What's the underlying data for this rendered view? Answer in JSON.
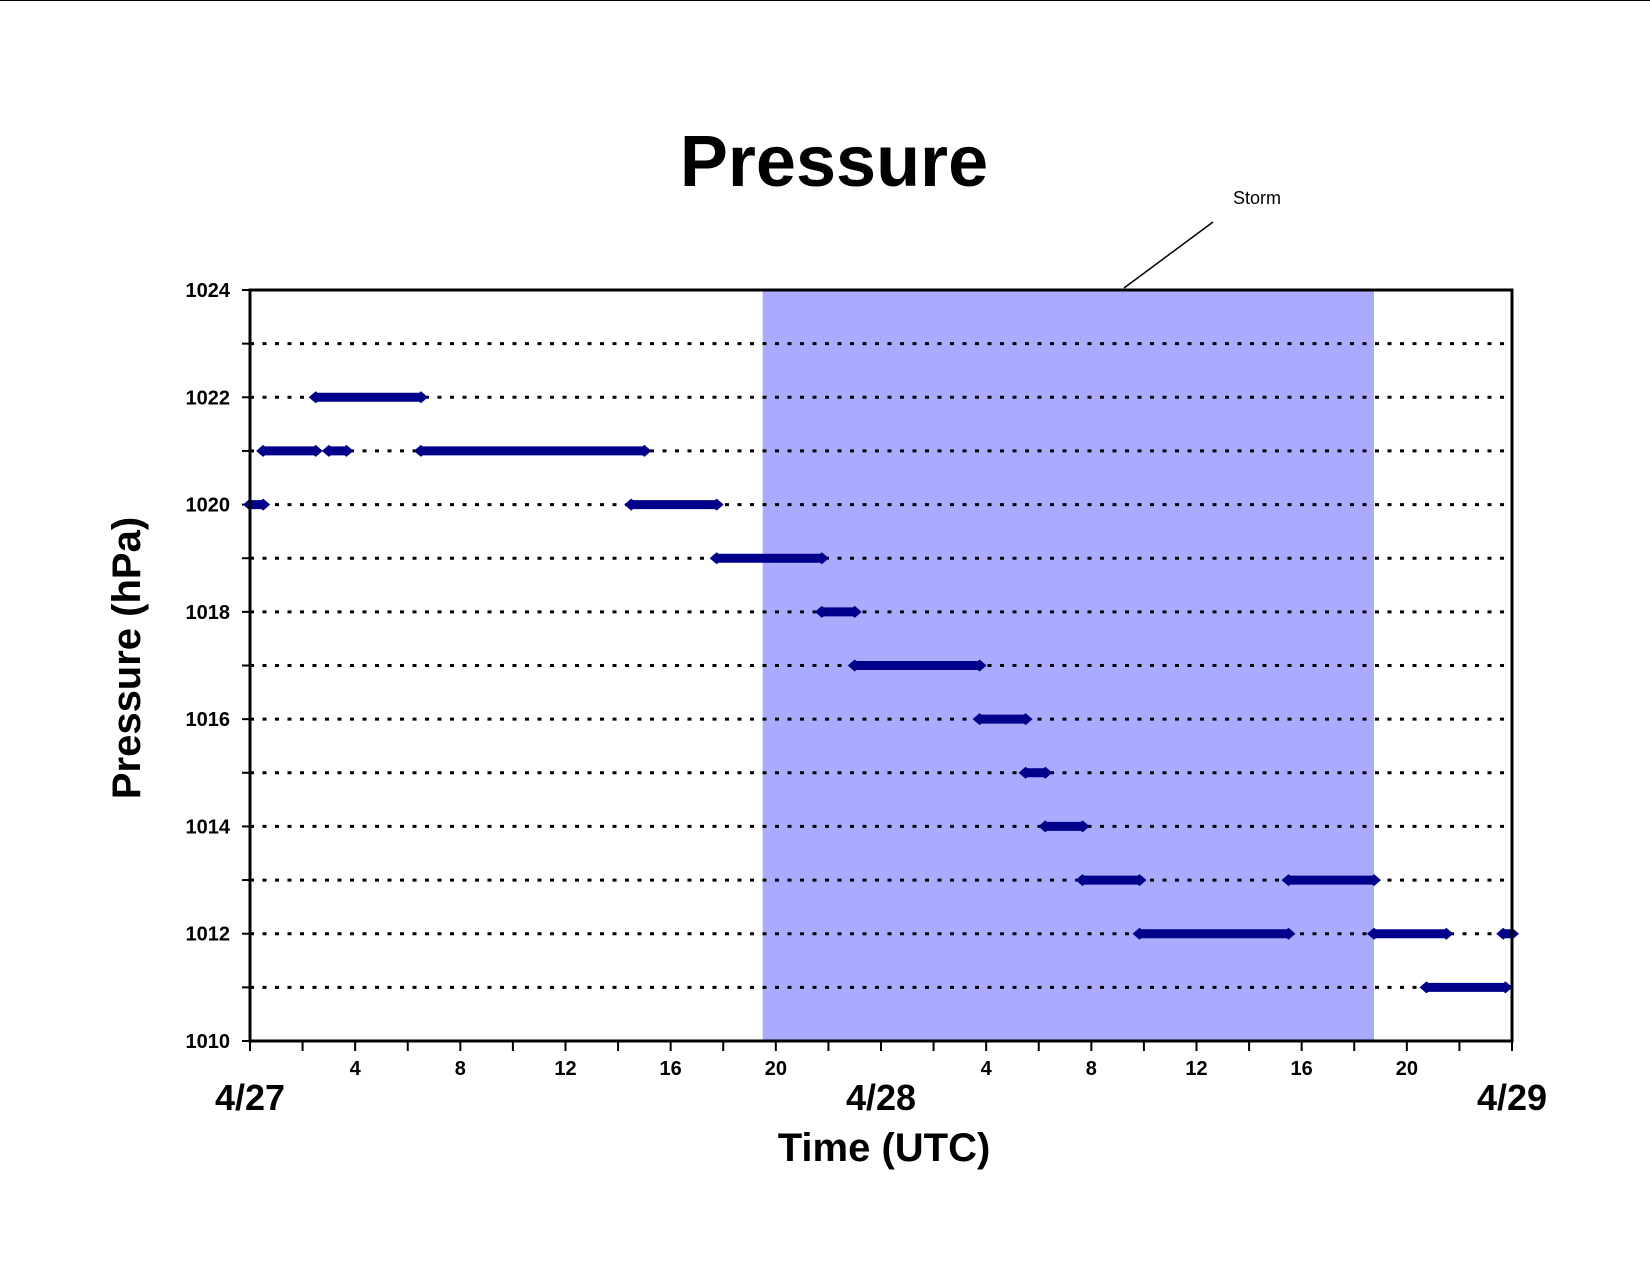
{
  "chart_data": {
    "type": "scatter",
    "title": "Pressure",
    "xlabel": "Time (UTC)",
    "ylabel": "Pressure (hPa)",
    "xlim": [
      "4/27 00:00",
      "4/29 00:00"
    ],
    "ylim": [
      1010,
      1024
    ],
    "y_ticks": [
      "1010",
      "1012",
      "1014",
      "1016",
      "1018",
      "1020",
      "1022",
      "1024"
    ],
    "x_hour_ticks": [
      "4",
      "8",
      "12",
      "16",
      "20",
      "4",
      "8",
      "12",
      "16",
      "20"
    ],
    "x_date_labels": [
      "4/27",
      "4/28",
      "4/29"
    ],
    "grid": "dotted horizontal lines at every 1 hPa",
    "marker_color": "#00008B",
    "annotation": {
      "text": "Storm",
      "shaded_region": {
        "start": "4/27 19:30",
        "end": "4/28 18:45",
        "color": "#AAAAFF"
      }
    },
    "series": [
      {
        "points": [
          {
            "x_start": "4/27 00:00",
            "x_end": "4/27 00:30",
            "y": 1020
          },
          {
            "x_start": "4/27 00:30",
            "x_end": "4/27 02:30",
            "y": 1021
          },
          {
            "x_start": "4/27 02:30",
            "x_end": "4/27 06:30",
            "y": 1022
          },
          {
            "x_start": "4/27 03:00",
            "x_end": "4/27 03:40",
            "y": 1021
          },
          {
            "x_start": "4/27 06:30",
            "x_end": "4/27 15:00",
            "y": 1021
          },
          {
            "x_start": "4/27 14:30",
            "x_end": "4/27 17:45",
            "y": 1020
          },
          {
            "x_start": "4/27 17:45",
            "x_end": "4/27 21:45",
            "y": 1019
          },
          {
            "x_start": "4/27 21:45",
            "x_end": "4/27 23:00",
            "y": 1018
          },
          {
            "x_start": "4/27 23:00",
            "x_end": "4/28 03:45",
            "y": 1017
          },
          {
            "x_start": "4/28 03:45",
            "x_end": "4/28 05:30",
            "y": 1016
          },
          {
            "x_start": "4/28 05:30",
            "x_end": "4/28 06:15",
            "y": 1015
          },
          {
            "x_start": "4/28 06:15",
            "x_end": "4/28 07:40",
            "y": 1014
          },
          {
            "x_start": "4/28 07:40",
            "x_end": "4/28 09:50",
            "y": 1013
          },
          {
            "x_start": "4/28 09:50",
            "x_end": "4/28 15:30",
            "y": 1012
          },
          {
            "x_start": "4/28 15:30",
            "x_end": "4/28 18:45",
            "y": 1013
          },
          {
            "x_start": "4/28 18:45",
            "x_end": "4/28 21:30",
            "y": 1012
          },
          {
            "x_start": "4/28 20:45",
            "x_end": "4/28 23:45",
            "y": 1011
          },
          {
            "x_start": "4/28 23:40",
            "x_end": "4/29 00:00",
            "y": 1012
          }
        ]
      }
    ]
  }
}
